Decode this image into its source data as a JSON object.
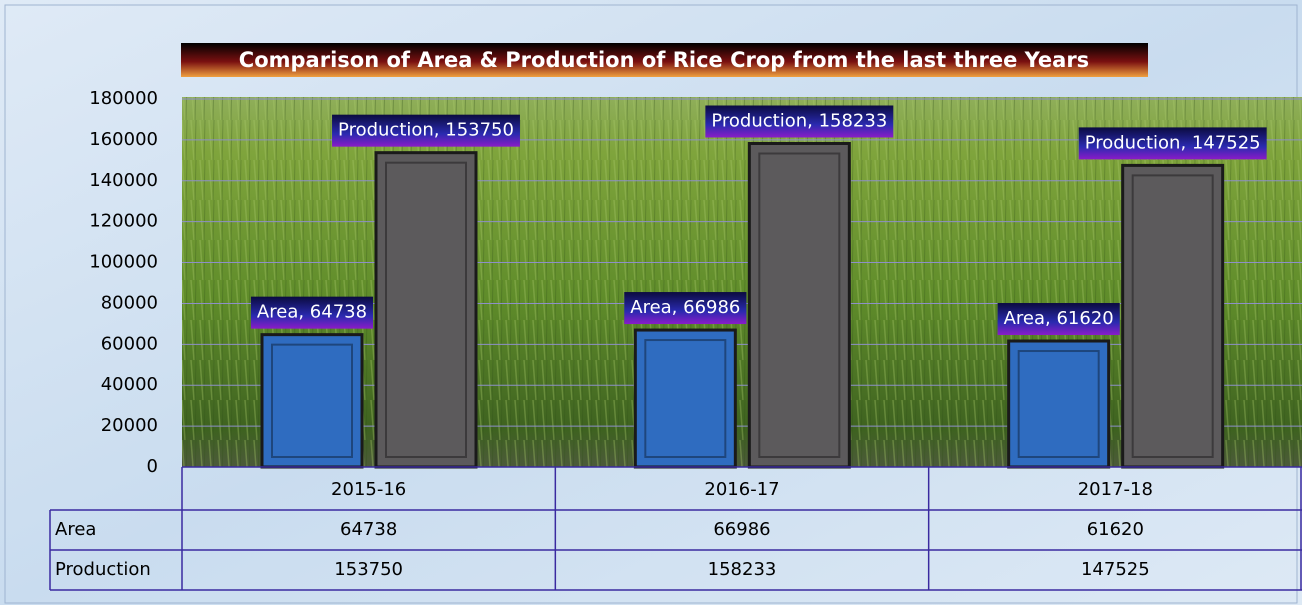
{
  "chart_data": {
    "type": "bar",
    "title": "Comparison of Area & Production of Rice Crop from the last three Years",
    "categories": [
      "2015-16",
      "2016-17",
      "2017-18"
    ],
    "series": [
      {
        "name": "Area",
        "color": "#2f6cc0",
        "values": [
          64738,
          66986,
          61620
        ],
        "value_labels": [
          "Area, 64738",
          "Area, 66986",
          "Area, 61620"
        ]
      },
      {
        "name": "Production",
        "color": "#5c5a5c",
        "values": [
          153750,
          158233,
          147525
        ],
        "value_labels": [
          "Production, 153750",
          "Production, 158233",
          "Production, 147525"
        ]
      }
    ],
    "ylim": [
      0,
      180000
    ],
    "yticks": [
      0,
      20000,
      40000,
      60000,
      80000,
      100000,
      120000,
      140000,
      160000,
      180000
    ],
    "grid": true,
    "data_table": true
  }
}
